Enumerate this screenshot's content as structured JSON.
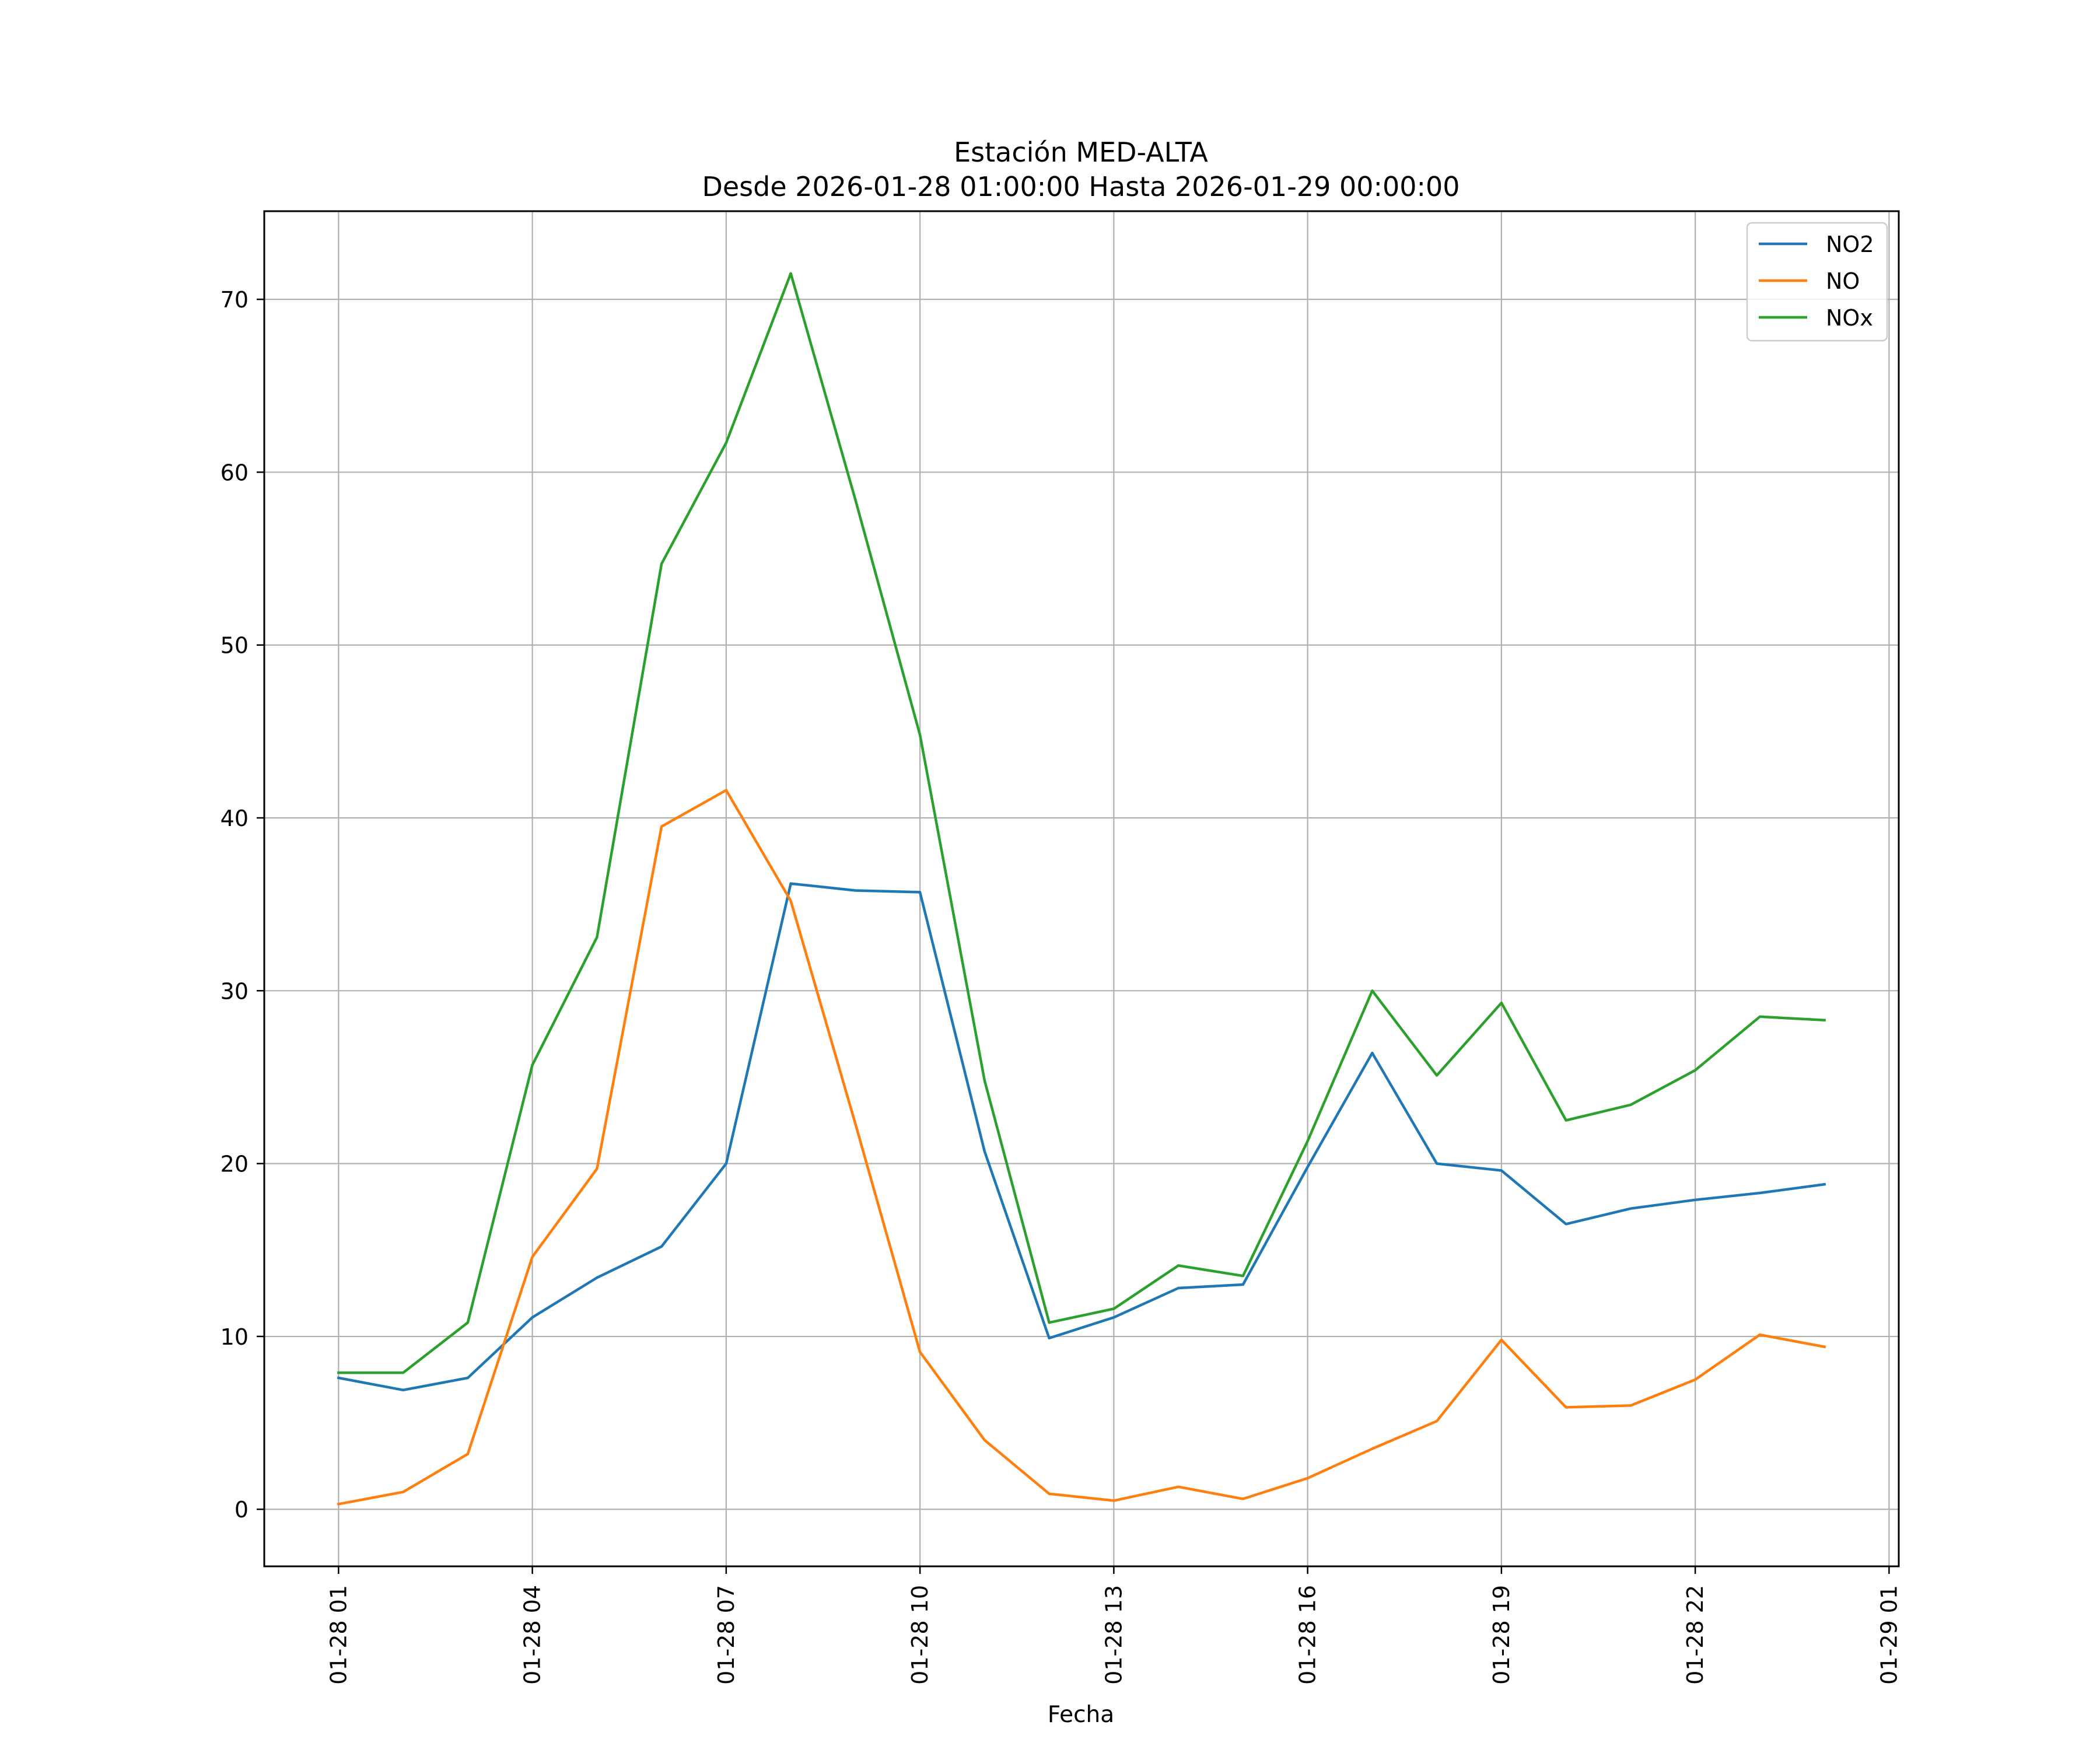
{
  "chart_data": {
    "type": "line",
    "title": "Estación MED-ALTA",
    "subtitle": "Desde 2026-01-28 01:00:00 Hasta 2026-01-29 00:00:00",
    "xlabel": "Fecha",
    "ylabel": "",
    "x": [
      "2026-01-28 01:00",
      "2026-01-28 02:00",
      "2026-01-28 03:00",
      "2026-01-28 04:00",
      "2026-01-28 05:00",
      "2026-01-28 06:00",
      "2026-01-28 07:00",
      "2026-01-28 08:00",
      "2026-01-28 09:00",
      "2026-01-28 10:00",
      "2026-01-28 11:00",
      "2026-01-28 12:00",
      "2026-01-28 13:00",
      "2026-01-28 14:00",
      "2026-01-28 15:00",
      "2026-01-28 16:00",
      "2026-01-28 17:00",
      "2026-01-28 18:00",
      "2026-01-28 19:00",
      "2026-01-28 20:00",
      "2026-01-28 21:00",
      "2026-01-28 22:00",
      "2026-01-28 23:00",
      "2026-01-29 00:00"
    ],
    "xlim": [
      "2026-01-27 23:51",
      "2026-01-29 01:09"
    ],
    "ylim": [
      -3.3,
      75.1
    ],
    "xticks": [
      "2026-01-28 01:00",
      "2026-01-28 04:00",
      "2026-01-28 07:00",
      "2026-01-28 10:00",
      "2026-01-28 13:00",
      "2026-01-28 16:00",
      "2026-01-28 19:00",
      "2026-01-28 22:00",
      "2026-01-29 01:00"
    ],
    "xtick_labels": [
      "01-28 01",
      "01-28 04",
      "01-28 07",
      "01-28 10",
      "01-28 13",
      "01-28 16",
      "01-28 19",
      "01-28 22",
      "01-29 01"
    ],
    "yticks": [
      0,
      10,
      20,
      30,
      40,
      50,
      60,
      70
    ],
    "ytick_labels": [
      "0",
      "10",
      "20",
      "30",
      "40",
      "50",
      "60",
      "70"
    ],
    "grid": true,
    "legend_position": "top-right",
    "series": [
      {
        "name": "NO2",
        "color": "#1f77b4",
        "values": [
          7.6,
          6.9,
          7.6,
          11.1,
          13.4,
          15.2,
          20.0,
          36.2,
          35.8,
          35.7,
          20.7,
          9.9,
          11.1,
          12.8,
          13.0,
          19.8,
          26.4,
          20.0,
          19.6,
          16.5,
          17.4,
          17.9,
          18.3,
          18.8
        ]
      },
      {
        "name": "NO",
        "color": "#ff7f0e",
        "values": [
          0.3,
          1.0,
          3.2,
          14.6,
          19.7,
          39.5,
          41.6,
          35.2,
          22.3,
          9.1,
          4.0,
          0.9,
          0.5,
          1.3,
          0.6,
          1.8,
          3.5,
          5.1,
          9.8,
          5.9,
          6.0,
          7.5,
          10.1,
          9.4
        ]
      },
      {
        "name": "NOx",
        "color": "#2ca02c",
        "values": [
          7.9,
          7.9,
          10.8,
          25.7,
          33.1,
          54.7,
          61.7,
          71.5,
          58.4,
          44.8,
          24.8,
          10.8,
          11.6,
          14.1,
          13.5,
          21.3,
          30.0,
          25.1,
          29.3,
          22.5,
          23.4,
          25.4,
          28.5,
          28.3
        ]
      }
    ]
  }
}
